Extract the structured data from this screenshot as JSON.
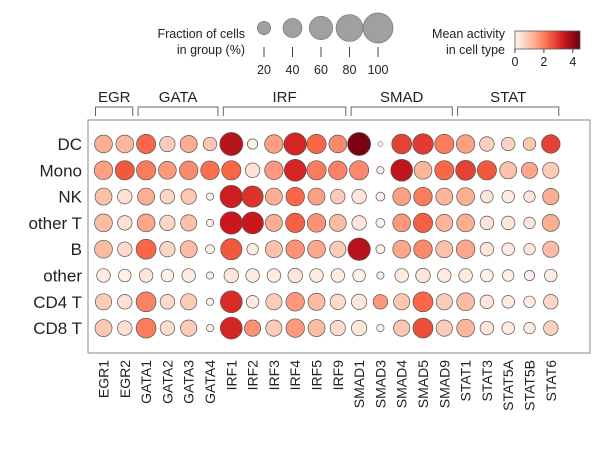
{
  "chart_data": {
    "type": "dotplot",
    "title": "",
    "groups": [
      {
        "label": "EGR",
        "members": [
          "EGR1",
          "EGR2"
        ]
      },
      {
        "label": "GATA",
        "members": [
          "GATA1",
          "GATA2",
          "GATA3",
          "GATA4"
        ]
      },
      {
        "label": "IRF",
        "members": [
          "IRF1",
          "IRF2",
          "IRF3",
          "IRF4",
          "IRF5",
          "IRF9"
        ]
      },
      {
        "label": "SMAD",
        "members": [
          "SMAD1",
          "SMAD3",
          "SMAD4",
          "SMAD5",
          "SMAD9"
        ]
      },
      {
        "label": "STAT",
        "members": [
          "STAT1",
          "STAT3",
          "STAT5A",
          "STAT5B",
          "STAT6"
        ]
      }
    ],
    "columns": [
      "EGR1",
      "EGR2",
      "GATA1",
      "GATA2",
      "GATA3",
      "GATA4",
      "IRF1",
      "IRF2",
      "IRF3",
      "IRF4",
      "IRF5",
      "IRF9",
      "SMAD1",
      "SMAD3",
      "SMAD4",
      "SMAD5",
      "SMAD9",
      "STAT1",
      "STAT3",
      "STAT5A",
      "STAT5B",
      "STAT6"
    ],
    "rows": [
      "DC",
      "Mono",
      "NK",
      "other T",
      "B",
      "other",
      "CD4 T",
      "CD8 T"
    ],
    "fraction": [
      [
        60,
        60,
        70,
        45,
        55,
        35,
        100,
        20,
        65,
        95,
        70,
        60,
        100,
        5,
        75,
        80,
        70,
        65,
        40,
        35,
        30,
        65
      ],
      [
        65,
        70,
        70,
        60,
        65,
        65,
        70,
        40,
        65,
        90,
        70,
        65,
        70,
        10,
        90,
        60,
        70,
        75,
        70,
        55,
        50,
        50
      ],
      [
        55,
        40,
        55,
        40,
        45,
        10,
        95,
        85,
        55,
        65,
        55,
        40,
        40,
        15,
        60,
        65,
        55,
        60,
        30,
        30,
        25,
        50
      ],
      [
        60,
        40,
        60,
        45,
        50,
        10,
        95,
        90,
        55,
        70,
        65,
        55,
        40,
        15,
        60,
        70,
        55,
        60,
        35,
        35,
        25,
        55
      ],
      [
        60,
        40,
        75,
        45,
        55,
        15,
        85,
        25,
        55,
        65,
        60,
        50,
        95,
        15,
        60,
        65,
        55,
        65,
        35,
        30,
        25,
        50
      ],
      [
        35,
        30,
        35,
        30,
        35,
        10,
        40,
        35,
        35,
        40,
        35,
        35,
        30,
        10,
        35,
        40,
        35,
        35,
        30,
        25,
        20,
        30
      ],
      [
        50,
        40,
        75,
        40,
        50,
        10,
        90,
        30,
        50,
        65,
        55,
        45,
        45,
        40,
        50,
        75,
        50,
        60,
        35,
        30,
        25,
        40
      ],
      [
        55,
        40,
        75,
        40,
        50,
        10,
        90,
        50,
        50,
        65,
        55,
        45,
        45,
        10,
        50,
        75,
        50,
        60,
        35,
        30,
        25,
        40
      ]
    ],
    "activity": [
      [
        1.3,
        1.2,
        2.3,
        0.8,
        1.3,
        0.9,
        3.6,
        0.1,
        1.5,
        3.2,
        2.3,
        1.8,
        4.3,
        0.1,
        2.8,
        2.9,
        2.0,
        1.5,
        0.7,
        0.7,
        0.9,
        2.8
      ],
      [
        1.5,
        2.5,
        2.0,
        1.6,
        1.8,
        2.2,
        2.3,
        0.4,
        1.6,
        3.2,
        2.0,
        1.9,
        1.8,
        0.1,
        3.5,
        1.2,
        2.3,
        2.8,
        2.5,
        1.0,
        1.4,
        0.8
      ],
      [
        1.0,
        0.4,
        1.3,
        0.6,
        0.9,
        0.1,
        3.3,
        3.0,
        1.3,
        2.3,
        1.5,
        0.8,
        0.3,
        0.1,
        1.5,
        2.0,
        1.2,
        1.3,
        0.3,
        0.2,
        0.3,
        1.3
      ],
      [
        1.1,
        0.4,
        1.4,
        0.6,
        1.0,
        0.1,
        3.4,
        3.4,
        1.3,
        2.4,
        1.7,
        1.1,
        0.3,
        0.1,
        1.6,
        2.4,
        1.2,
        1.3,
        0.3,
        0.3,
        0.3,
        1.3
      ],
      [
        1.1,
        0.5,
        2.3,
        0.6,
        1.1,
        0.1,
        2.5,
        0.2,
        1.0,
        1.7,
        1.4,
        0.8,
        3.6,
        0.1,
        1.4,
        1.8,
        1.0,
        1.4,
        0.3,
        0.2,
        0.3,
        1.1
      ],
      [
        0.2,
        0.1,
        0.3,
        0.1,
        0.2,
        0.1,
        0.3,
        0.2,
        0.2,
        0.3,
        0.2,
        0.2,
        0.1,
        0.1,
        0.2,
        0.3,
        0.2,
        0.2,
        0.1,
        0.1,
        0.1,
        0.2
      ],
      [
        0.8,
        0.4,
        1.9,
        0.5,
        0.8,
        0.1,
        3.1,
        0.2,
        0.8,
        1.6,
        1.1,
        0.5,
        0.3,
        1.6,
        0.9,
        2.3,
        0.8,
        1.1,
        0.3,
        0.2,
        0.2,
        0.6
      ],
      [
        0.9,
        0.4,
        2.0,
        0.5,
        0.8,
        0.1,
        3.2,
        1.7,
        0.8,
        1.6,
        1.1,
        0.5,
        0.3,
        0.1,
        0.9,
        2.6,
        0.8,
        1.2,
        0.3,
        0.2,
        0.2,
        0.7
      ]
    ],
    "size_legend": {
      "title_lines": [
        "Fraction of cells",
        "in group (%)"
      ],
      "values": [
        20,
        40,
        60,
        80,
        100
      ],
      "tick_labels": [
        "20",
        "40",
        "60",
        "80",
        "100"
      ]
    },
    "color_legend": {
      "title_lines": [
        "Mean activity",
        "in cell type"
      ],
      "range": [
        0,
        4.5
      ],
      "tick_values": [
        0,
        2,
        4
      ],
      "tick_labels": [
        "0",
        "2",
        "4"
      ],
      "colormap": "Reds",
      "colors": [
        "#fff5f0",
        "#fcbba1",
        "#fb6a4a",
        "#cb181d",
        "#67000d"
      ]
    }
  }
}
